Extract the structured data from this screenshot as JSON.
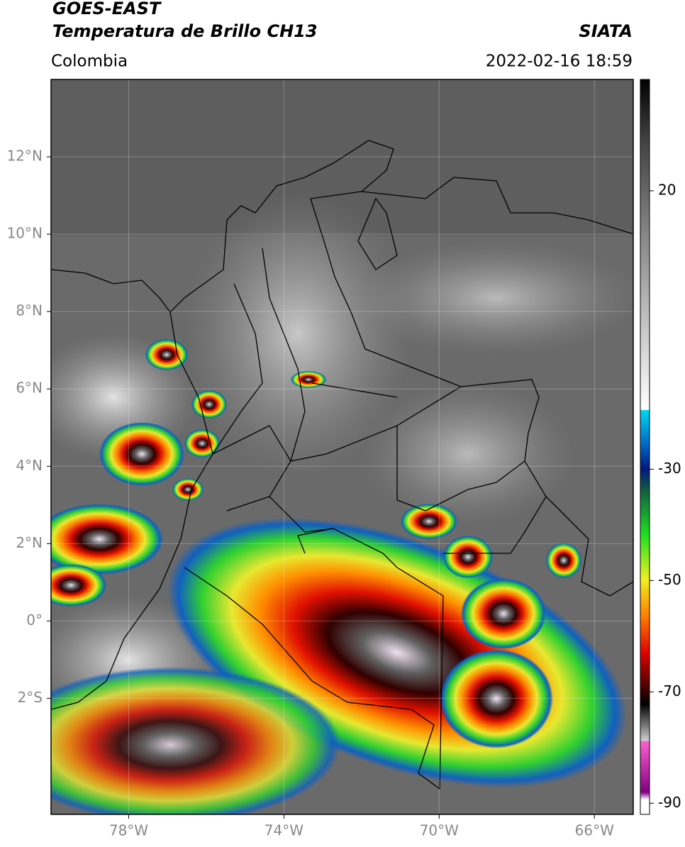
{
  "header": {
    "title": "GOES-EAST",
    "subtitle": "Temperatura de Brillo CH13",
    "source": "SIATA",
    "region": "Colombia",
    "datetime": "2022-02-16 18:59"
  },
  "map": {
    "lonlim": [
      -80,
      -65
    ],
    "latlim": [
      -5,
      14
    ],
    "lat_ticks": [
      {
        "value": 12,
        "label": "12°N"
      },
      {
        "value": 10,
        "label": "10°N"
      },
      {
        "value": 8,
        "label": "8°N"
      },
      {
        "value": 6,
        "label": "6°N"
      },
      {
        "value": 4,
        "label": "4°N"
      },
      {
        "value": 2,
        "label": "2°N"
      },
      {
        "value": 0,
        "label": "0°"
      },
      {
        "value": -2,
        "label": "2°S"
      }
    ],
    "lon_ticks": [
      {
        "value": -78,
        "label": "78°W"
      },
      {
        "value": -74,
        "label": "74°W"
      },
      {
        "value": -70,
        "label": "70°W"
      },
      {
        "value": -66,
        "label": "66°W"
      }
    ]
  },
  "colorbar": {
    "lim": [
      -92,
      40
    ],
    "ticks": [
      20,
      -30,
      -50,
      -70,
      -90
    ]
  }
}
